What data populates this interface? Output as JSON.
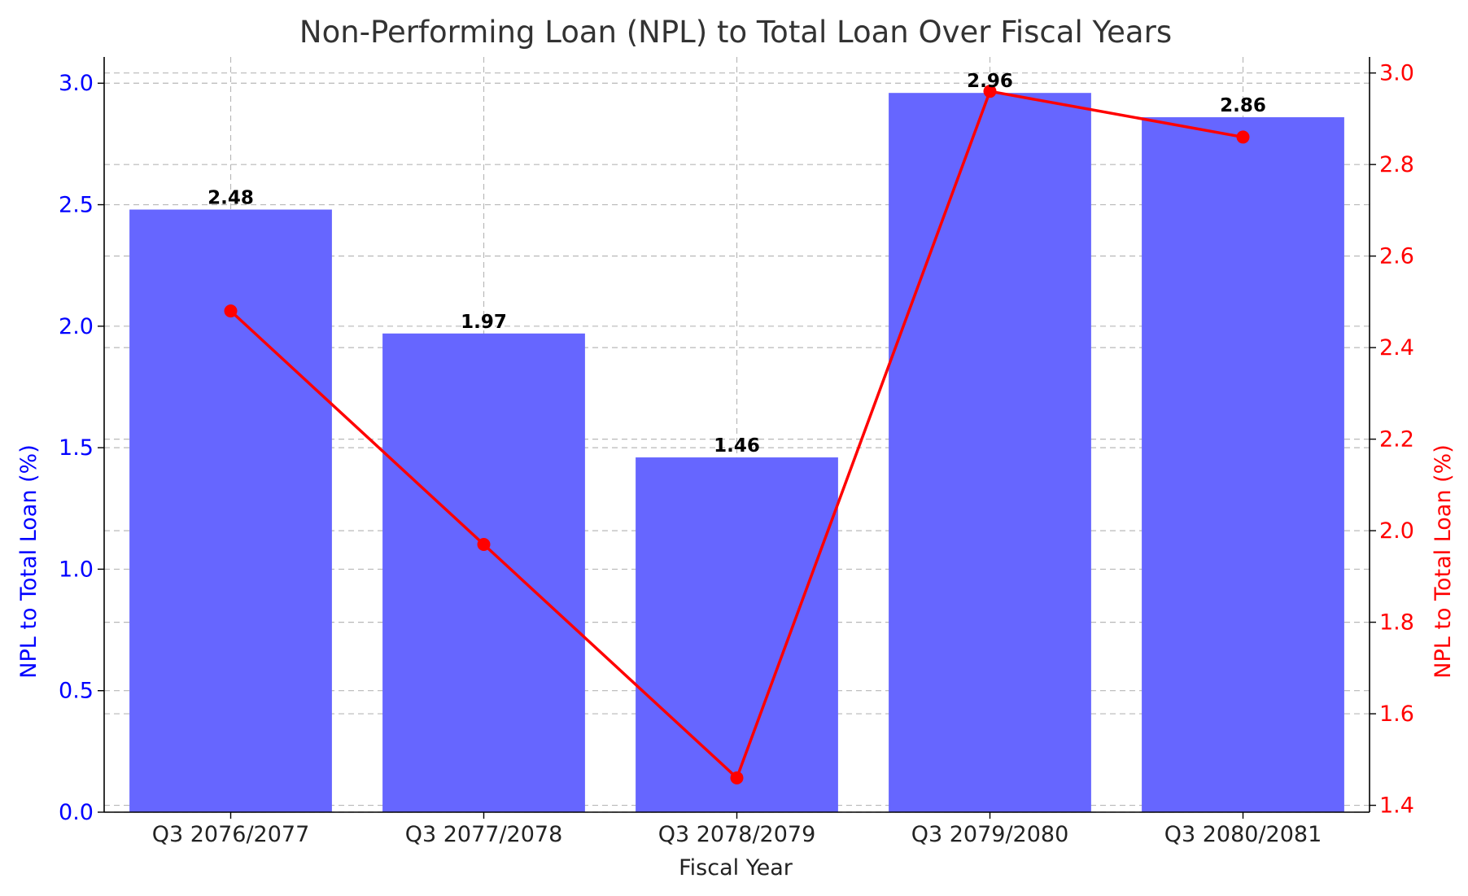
{
  "chart_data": {
    "type": "bar",
    "title": "Non-Performing Loan (NPL) to Total Loan Over Fiscal Years",
    "xlabel": "Fiscal Year",
    "categories": [
      "Q3 2076/2077",
      "Q3 2077/2078",
      "Q3 2078/2079",
      "Q3 2079/2080",
      "Q3 2080/2081"
    ],
    "grid": true,
    "bars": {
      "values": [
        2.48,
        1.97,
        1.46,
        2.96,
        2.86
      ],
      "data_labels": [
        "2.48",
        "1.97",
        "1.46",
        "2.96",
        "2.86"
      ],
      "color": "#6666ff",
      "axis": "left"
    },
    "line": {
      "values": [
        2.48,
        1.97,
        1.46,
        2.96,
        2.86
      ],
      "color": "#ff0000",
      "marker": "circle",
      "axis": "right"
    },
    "left_axis": {
      "label": "NPL to Total Loan (%)",
      "color": "#0000ff",
      "ylim": [
        0,
        3.108
      ],
      "ticks": [
        "0.0",
        "0.5",
        "1.0",
        "1.5",
        "2.0",
        "2.5",
        "3.0"
      ]
    },
    "right_axis": {
      "label": "NPL to Total Loan (%)",
      "color": "#ff0000",
      "ylim": [
        1.385,
        3.035
      ],
      "ticks": [
        "1.4",
        "1.6",
        "1.8",
        "2.0",
        "2.2",
        "2.4",
        "2.6",
        "2.8",
        "3.0"
      ]
    }
  }
}
